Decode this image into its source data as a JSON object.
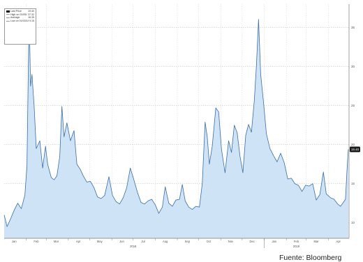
{
  "chart_data": {
    "type": "area",
    "title": "",
    "xlabel": "",
    "ylabel": "",
    "x_range": [
      "2018-01-01",
      "2019-04-30"
    ],
    "ylim": [
      8,
      38
    ],
    "y_ticks": [
      10,
      15,
      20,
      25,
      30,
      35
    ],
    "y_tick_labels": [
      "10",
      "15",
      "20",
      "25",
      "30",
      "35"
    ],
    "x_month_labels": [
      {
        "date": "2018-01-15",
        "label": "Jan"
      },
      {
        "date": "2018-02-15",
        "label": "Feb"
      },
      {
        "date": "2018-03-15",
        "label": "Mar"
      },
      {
        "date": "2018-04-15",
        "label": "Apr"
      },
      {
        "date": "2018-05-15",
        "label": "May"
      },
      {
        "date": "2018-06-15",
        "label": "Jun"
      },
      {
        "date": "2018-07-15",
        "label": "Jul"
      },
      {
        "date": "2018-08-15",
        "label": "Aug"
      },
      {
        "date": "2018-09-15",
        "label": "Sep"
      },
      {
        "date": "2018-10-15",
        "label": "Oct"
      },
      {
        "date": "2018-11-15",
        "label": "Nov"
      },
      {
        "date": "2018-12-15",
        "label": "Dec"
      },
      {
        "date": "2019-01-15",
        "label": "Jan"
      },
      {
        "date": "2019-02-15",
        "label": "Feb"
      },
      {
        "date": "2019-03-15",
        "label": "Mar"
      },
      {
        "date": "2019-04-15",
        "label": "Apr"
      }
    ],
    "x_year_labels": [
      {
        "date": "2018-07-01",
        "label": "2018"
      },
      {
        "date": "2019-02-15",
        "label": "2019"
      }
    ],
    "series": [
      {
        "name": "Last Price",
        "color": "#3a6ea5",
        "fill": "#cfe3f7",
        "points": [
          [
            "2018-01-01",
            11.0
          ],
          [
            "2018-01-05",
            9.5
          ],
          [
            "2018-01-10",
            10.5
          ],
          [
            "2018-01-15",
            11.6
          ],
          [
            "2018-01-20",
            12.5
          ],
          [
            "2018-01-25",
            11.8
          ],
          [
            "2018-01-30",
            13.5
          ],
          [
            "2018-02-02",
            17.3
          ],
          [
            "2018-02-05",
            37.32
          ],
          [
            "2018-02-07",
            27.5
          ],
          [
            "2018-02-09",
            29.0
          ],
          [
            "2018-02-12",
            25.0
          ],
          [
            "2018-02-15",
            19.5
          ],
          [
            "2018-02-20",
            20.5
          ],
          [
            "2018-02-24",
            17.0
          ],
          [
            "2018-02-28",
            19.8
          ],
          [
            "2018-03-03",
            17.5
          ],
          [
            "2018-03-08",
            15.8
          ],
          [
            "2018-03-12",
            15.5
          ],
          [
            "2018-03-16",
            16.0
          ],
          [
            "2018-03-20",
            18.5
          ],
          [
            "2018-03-23",
            24.9
          ],
          [
            "2018-03-26",
            21.0
          ],
          [
            "2018-03-30",
            22.8
          ],
          [
            "2018-04-04",
            20.5
          ],
          [
            "2018-04-09",
            21.8
          ],
          [
            "2018-04-13",
            17.5
          ],
          [
            "2018-04-18",
            16.8
          ],
          [
            "2018-04-22",
            16.0
          ],
          [
            "2018-04-27",
            15.2
          ],
          [
            "2018-05-02",
            15.3
          ],
          [
            "2018-05-07",
            14.5
          ],
          [
            "2018-05-12",
            13.3
          ],
          [
            "2018-05-17",
            13.1
          ],
          [
            "2018-05-22",
            13.5
          ],
          [
            "2018-05-28",
            15.9
          ],
          [
            "2018-06-02",
            13.5
          ],
          [
            "2018-06-07",
            12.7
          ],
          [
            "2018-06-12",
            12.4
          ],
          [
            "2018-06-17",
            13.2
          ],
          [
            "2018-06-22",
            14.5
          ],
          [
            "2018-06-27",
            17.0
          ],
          [
            "2018-07-02",
            15.5
          ],
          [
            "2018-07-07",
            13.9
          ],
          [
            "2018-07-12",
            12.6
          ],
          [
            "2018-07-17",
            12.4
          ],
          [
            "2018-07-22",
            12.8
          ],
          [
            "2018-07-27",
            13.0
          ],
          [
            "2018-08-01",
            12.3
          ],
          [
            "2018-08-06",
            11.2
          ],
          [
            "2018-08-11",
            12.0
          ],
          [
            "2018-08-15",
            14.6
          ],
          [
            "2018-08-20",
            12.5
          ],
          [
            "2018-08-25",
            12.1
          ],
          [
            "2018-08-30",
            12.9
          ],
          [
            "2018-09-04",
            13.0
          ],
          [
            "2018-09-08",
            14.9
          ],
          [
            "2018-09-12",
            12.8
          ],
          [
            "2018-09-17",
            12.0
          ],
          [
            "2018-09-22",
            11.7
          ],
          [
            "2018-09-27",
            12.1
          ],
          [
            "2018-10-02",
            12.0
          ],
          [
            "2018-10-06",
            15.0
          ],
          [
            "2018-10-10",
            22.9
          ],
          [
            "2018-10-13",
            21.0
          ],
          [
            "2018-10-16",
            17.5
          ],
          [
            "2018-10-20",
            19.8
          ],
          [
            "2018-10-25",
            24.7
          ],
          [
            "2018-10-29",
            24.2
          ],
          [
            "2018-11-02",
            19.4
          ],
          [
            "2018-11-07",
            16.4
          ],
          [
            "2018-11-12",
            20.5
          ],
          [
            "2018-11-16",
            19.0
          ],
          [
            "2018-11-20",
            22.5
          ],
          [
            "2018-11-24",
            21.5
          ],
          [
            "2018-11-28",
            18.5
          ],
          [
            "2018-12-02",
            16.4
          ],
          [
            "2018-12-06",
            21.2
          ],
          [
            "2018-12-10",
            22.6
          ],
          [
            "2018-12-14",
            21.6
          ],
          [
            "2018-12-18",
            25.6
          ],
          [
            "2018-12-21",
            30.1
          ],
          [
            "2018-12-24",
            36.07
          ],
          [
            "2018-12-27",
            29.0
          ],
          [
            "2018-12-31",
            25.4
          ],
          [
            "2019-01-04",
            21.4
          ],
          [
            "2019-01-09",
            19.5
          ],
          [
            "2019-01-14",
            18.6
          ],
          [
            "2019-01-19",
            17.8
          ],
          [
            "2019-01-24",
            18.9
          ],
          [
            "2019-01-29",
            17.7
          ],
          [
            "2019-02-03",
            15.6
          ],
          [
            "2019-02-08",
            15.7
          ],
          [
            "2019-02-13",
            15.0
          ],
          [
            "2019-02-18",
            14.8
          ],
          [
            "2019-02-23",
            14.0
          ],
          [
            "2019-02-28",
            14.8
          ],
          [
            "2019-03-05",
            14.7
          ],
          [
            "2019-03-10",
            15.0
          ],
          [
            "2019-03-15",
            12.9
          ],
          [
            "2019-03-20",
            13.6
          ],
          [
            "2019-03-25",
            16.5
          ],
          [
            "2019-03-29",
            13.7
          ],
          [
            "2019-04-04",
            13.2
          ],
          [
            "2019-04-09",
            13.0
          ],
          [
            "2019-04-14",
            12.4
          ],
          [
            "2019-04-18",
            12.1
          ],
          [
            "2019-04-22",
            12.6
          ],
          [
            "2019-04-25",
            13.0
          ],
          [
            "2019-04-27",
            16.5
          ],
          [
            "2019-04-29",
            19.4
          ]
        ]
      }
    ],
    "last_value_label": "19.40",
    "legend": {
      "placement": "top-left",
      "entries": [
        {
          "name": "Last Price",
          "value": "19.40",
          "color": "#111111"
        },
        {
          "name": "High on 02/05/18",
          "value": "37.32",
          "color": "#999999"
        },
        {
          "name": "Average",
          "value": "16.35",
          "color": "#999999"
        },
        {
          "name": "Low on 01/03/18",
          "value": "9.15",
          "color": "#999999"
        }
      ]
    },
    "grid": true
  },
  "source_note": "Fuente: Bloomberg"
}
